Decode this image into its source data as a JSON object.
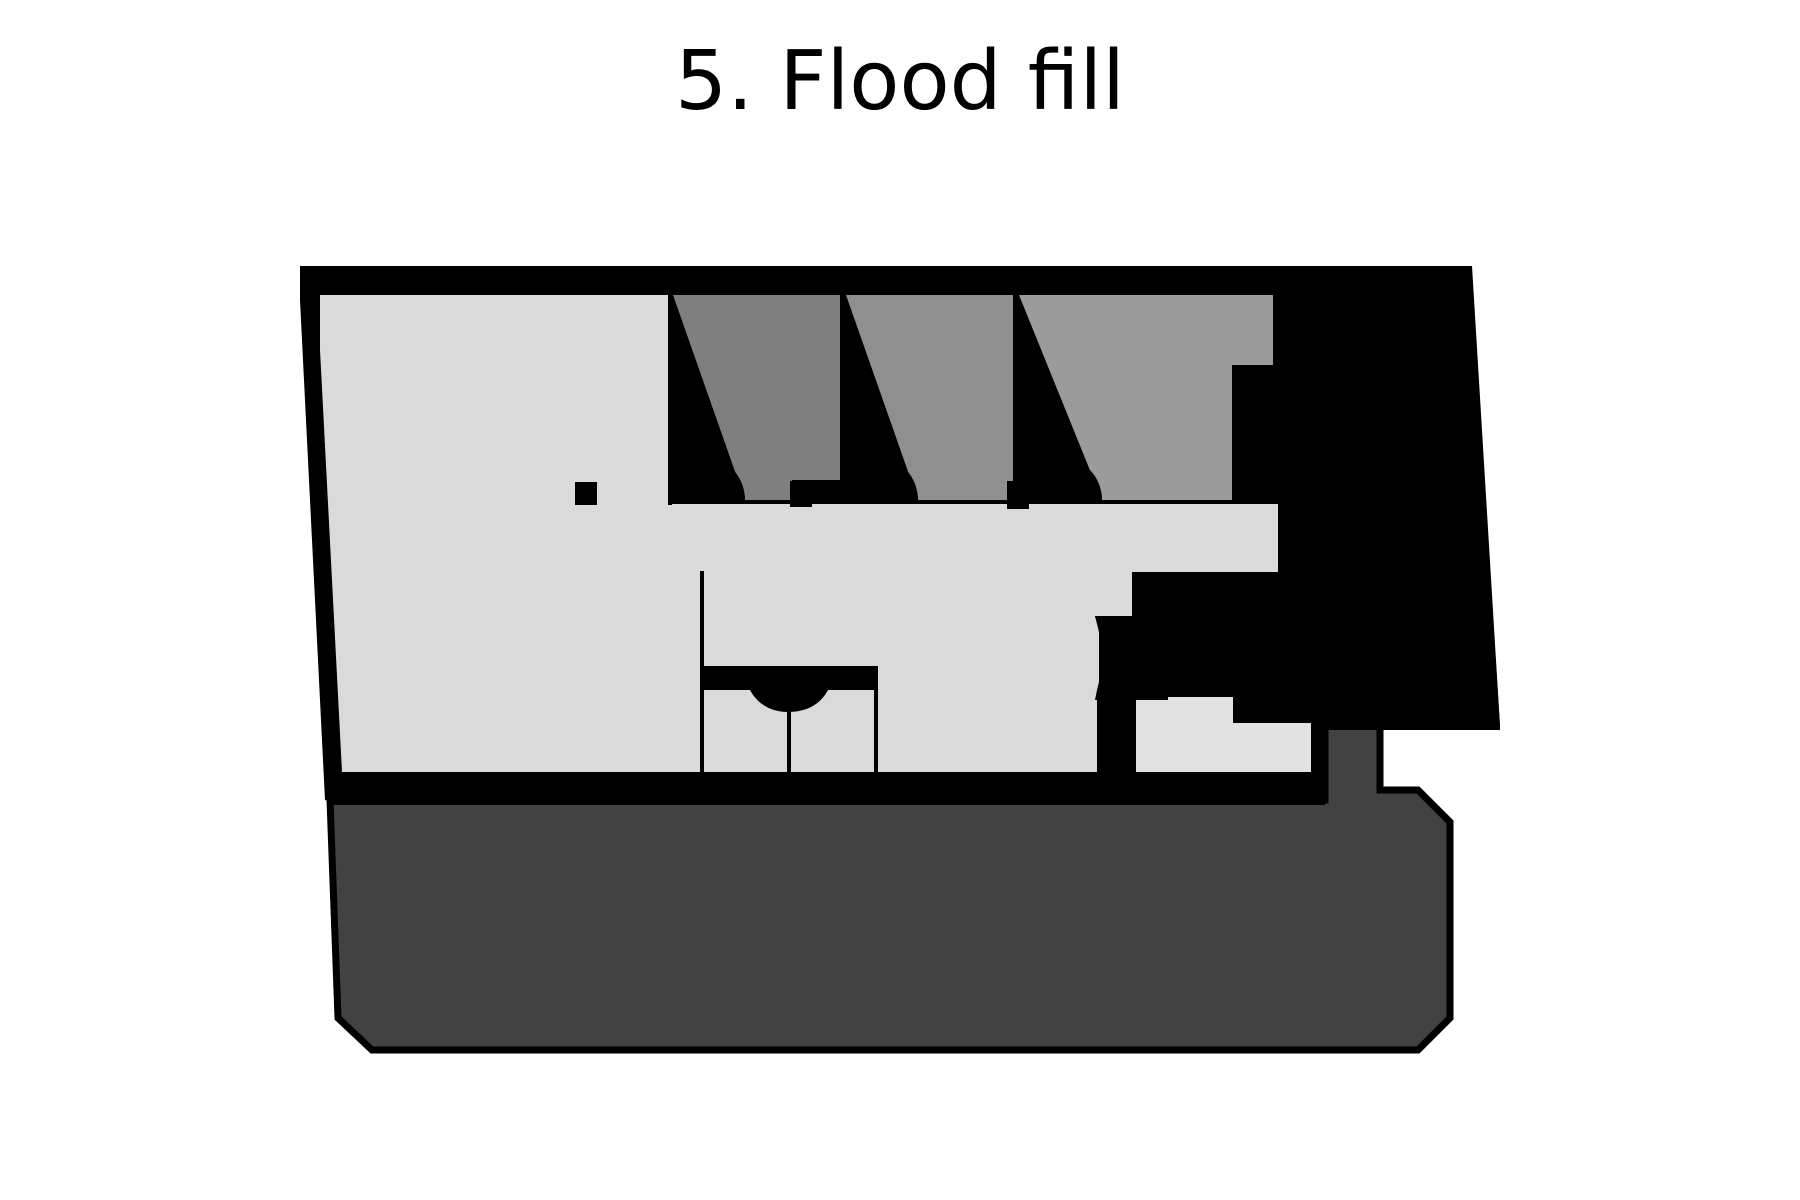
{
  "figure": {
    "title": "5. Flood fill"
  },
  "colors": {
    "background": "#ffffff",
    "wall": "#000000",
    "corridor": "#dadada",
    "room_a": "#7f7f7f",
    "room_b": "#8f8f8f",
    "room_c": "#9b9b9b",
    "room_small_left": "#c5c5c5",
    "room_small_right": "#d4d4d4",
    "room_lower_right": "#e2e2e2",
    "room_stair": "#1c1c1c",
    "room_bottom": "#424242"
  },
  "regions": [
    {
      "name": "corridor-region",
      "shade": "#dadada"
    },
    {
      "name": "room-a-region",
      "shade": "#7f7f7f"
    },
    {
      "name": "room-b-region",
      "shade": "#8f8f8f"
    },
    {
      "name": "room-c-region",
      "shade": "#9b9b9b"
    },
    {
      "name": "small-room-left-region",
      "shade": "#c5c5c5"
    },
    {
      "name": "small-room-right-region",
      "shade": "#d4d4d4"
    },
    {
      "name": "lower-right-room-region",
      "shade": "#e2e2e2"
    },
    {
      "name": "stair-room-region",
      "shade": "#1c1c1c"
    },
    {
      "name": "bottom-room-region",
      "shade": "#424242"
    }
  ]
}
